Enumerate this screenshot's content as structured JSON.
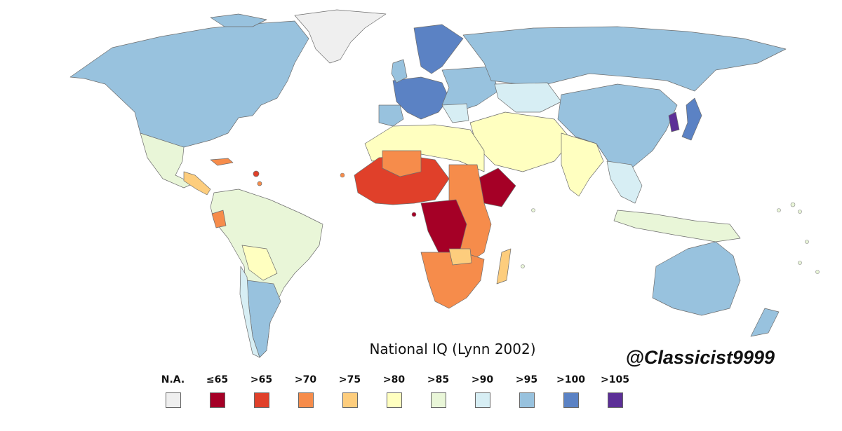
{
  "title": "National IQ (Lynn 2002)",
  "credit": "@Classicist9999",
  "legend": [
    {
      "label": "N.A.",
      "color": "#efefef"
    },
    {
      "label": "≤65",
      "color": "#a50026"
    },
    {
      "label": ">65",
      "color": "#e0402a"
    },
    {
      "label": ">70",
      "color": "#f68c4b"
    },
    {
      "label": ">75",
      "color": "#fdcd7d"
    },
    {
      "label": ">80",
      "color": "#ffffc0"
    },
    {
      "label": ">85",
      "color": "#e9f6d8"
    },
    {
      "label": ">90",
      "color": "#d7eef4"
    },
    {
      "label": ">95",
      "color": "#98c2de"
    },
    {
      "label": ">100",
      "color": "#5b82c4"
    },
    {
      "label": ">105",
      "color": "#5c2f97"
    }
  ],
  "colors": {
    "ocean": "#ffffff",
    "border": "#555555"
  }
}
